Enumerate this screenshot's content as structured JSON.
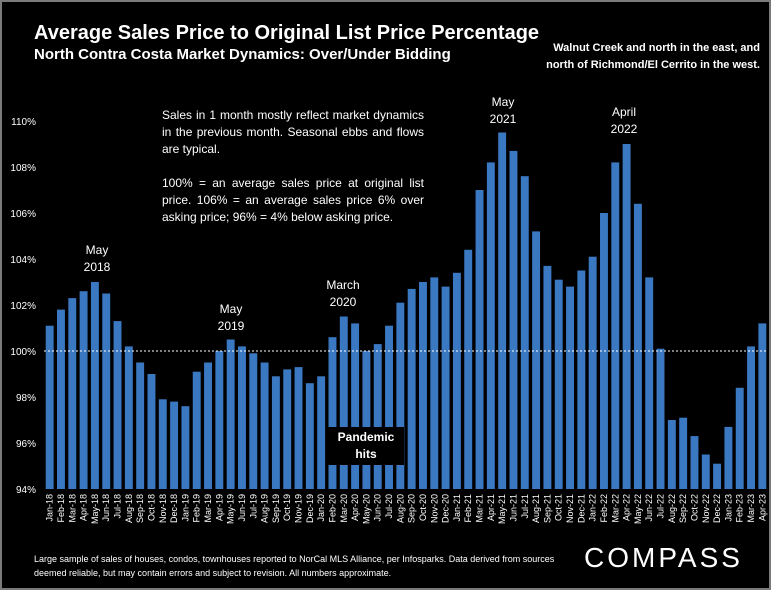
{
  "title": "Average Sales Price to Original List Price Percentage",
  "subtitle": "North Contra Costa Market Dynamics: Over/Under Bidding",
  "region_note": "Walnut Creek and north in the east, and north of Richmond/El Cerrito in the west.",
  "note_paragraphs": [
    "Sales in 1 month mostly reflect market dynamics in the previous month. Seasonal ebbs and flows are typical.",
    "100% = an average sales price at original list price. 106% = an average sales price 6% over asking price; 96% = 4% below asking price."
  ],
  "annotations": {
    "may_2018": "May 2018",
    "may_2019": "May 2019",
    "march_2020": "March 2020",
    "may_2021": "May 2021",
    "april_2022": "April 2022",
    "pandemic": "Pandemic hits"
  },
  "footnote": "Large sample of sales of houses, condos, townhouses reported to NorCal MLS Alliance, per Infosparks. Data derived from sources deemed reliable, but may contain errors and subject to revision. All numbers approximate.",
  "logo": "COMPASS",
  "colors": {
    "bar": "#3a78c2",
    "background": "#000000",
    "text": "#ffffff",
    "reference_line": "#ffffff"
  },
  "chart_data": {
    "type": "bar",
    "categories": [
      "Jan-18",
      "Feb-18",
      "Mar-18",
      "Apr-18",
      "May-18",
      "Jun-18",
      "Jul-18",
      "Aug-18",
      "Sep-18",
      "Oct-18",
      "Nov-18",
      "Dec-18",
      "Jan-19",
      "Feb-19",
      "Mar-19",
      "Apr-19",
      "May-19",
      "Jun-19",
      "Jul-19",
      "Aug-19",
      "Sep-19",
      "Oct-19",
      "Nov-19",
      "Dec-19",
      "Jan-20",
      "Feb-20",
      "Mar-20",
      "Apr-20",
      "May-20",
      "Jun-20",
      "Jul-20",
      "Aug-20",
      "Sep-20",
      "Oct-20",
      "Nov-20",
      "Dec-20",
      "Jan-21",
      "Feb-21",
      "Mar-21",
      "Apr-21",
      "May-21",
      "Jun-21",
      "Jul-21",
      "Aug-21",
      "Sep-21",
      "Oct-21",
      "Nov-21",
      "Dec-21",
      "Jan-22",
      "Feb-22",
      "Mar-22",
      "Apr-22",
      "May-22",
      "Jun-22",
      "Jul-22",
      "Aug-22",
      "Sep-22",
      "Oct-22",
      "Nov-22",
      "Dec-22",
      "Jan-23",
      "Feb-23",
      "Mar-23",
      "Apr-23"
    ],
    "values": [
      101.1,
      101.8,
      102.3,
      102.6,
      103.0,
      102.5,
      101.3,
      100.2,
      99.5,
      99.0,
      97.9,
      97.8,
      97.6,
      99.1,
      99.5,
      100.0,
      100.5,
      100.2,
      99.9,
      99.5,
      98.9,
      99.2,
      99.3,
      98.6,
      98.9,
      100.6,
      101.5,
      101.2,
      100.0,
      100.3,
      101.1,
      102.1,
      102.7,
      103.0,
      103.2,
      102.8,
      103.4,
      104.4,
      107.0,
      108.2,
      109.5,
      108.7,
      107.6,
      105.2,
      103.7,
      103.1,
      102.8,
      103.5,
      104.1,
      106.0,
      108.2,
      109.0,
      106.4,
      103.2,
      100.1,
      97.0,
      97.1,
      96.3,
      95.5,
      95.1,
      96.7,
      98.4,
      100.2,
      101.2
    ],
    "ylim": [
      94,
      110
    ],
    "yticks": [
      "94%",
      "96%",
      "98%",
      "100%",
      "102%",
      "104%",
      "106%",
      "108%",
      "110%"
    ],
    "reference_line": 100,
    "grid": false
  }
}
